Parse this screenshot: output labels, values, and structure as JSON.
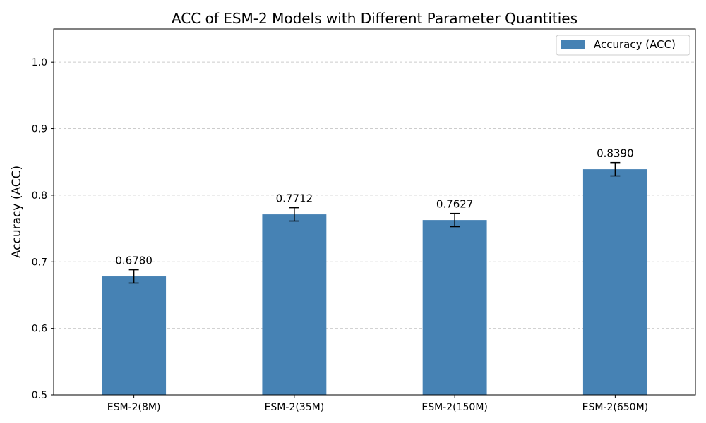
{
  "chart_data": {
    "type": "bar",
    "title": "ACC of ESM-2 Models with Different Parameter Quantities",
    "xlabel": "",
    "ylabel": "Accuracy (ACC)",
    "categories": [
      "ESM-2(8M)",
      "ESM-2(35M)",
      "ESM-2(150M)",
      "ESM-2(650M)"
    ],
    "series": [
      {
        "name": "Accuracy (ACC)",
        "values": [
          0.678,
          0.7712,
          0.7627,
          0.839
        ],
        "errors": [
          0.01,
          0.01,
          0.01,
          0.01
        ],
        "labels": [
          "0.6780",
          "0.7712",
          "0.7627",
          "0.8390"
        ],
        "color": "#4682b4"
      }
    ],
    "ylim": [
      0.5,
      1.05
    ],
    "yticks": [
      0.5,
      0.6,
      0.7,
      0.8,
      0.9,
      1.0
    ],
    "ytick_labels": [
      "0.5",
      "0.6",
      "0.7",
      "0.8",
      "0.9",
      "1.0"
    ],
    "grid": "y-dashed",
    "legend": "top-right"
  }
}
